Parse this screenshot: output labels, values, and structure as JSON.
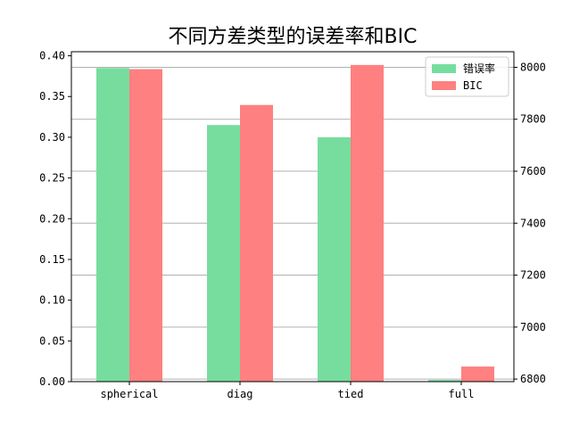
{
  "chart_data": {
    "type": "bar",
    "title": "不同方差类型的误差率和BIC",
    "categories": [
      "spherical",
      "diag",
      "tied",
      "full"
    ],
    "series": [
      {
        "name": "错误率",
        "axis": "left",
        "color": "#77dd9f",
        "values": [
          0.385,
          0.315,
          0.3,
          0.002
        ]
      },
      {
        "name": "BIC",
        "axis": "right",
        "color": "#ff8080",
        "values": [
          7993,
          7855,
          8009,
          6848
        ]
      }
    ],
    "y_left": {
      "lim": [
        0.0,
        0.405
      ],
      "ticks": [
        "0.00",
        "0.05",
        "0.10",
        "0.15",
        "0.20",
        "0.25",
        "0.30",
        "0.35",
        "0.40"
      ]
    },
    "y_right": {
      "lim": [
        6790,
        8060
      ],
      "ticks": [
        "6800",
        "7000",
        "7200",
        "7400",
        "7600",
        "7800",
        "8000"
      ]
    },
    "grid": "horizontal (right axis)",
    "legend_position": "top-right"
  }
}
